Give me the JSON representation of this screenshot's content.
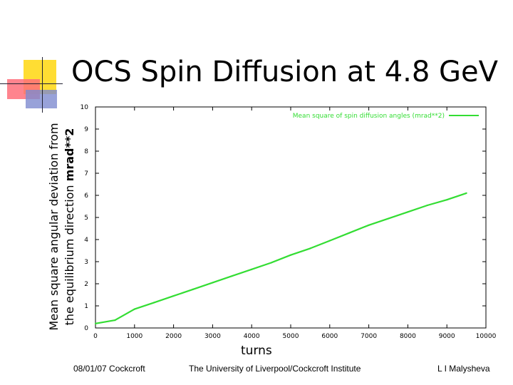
{
  "slide": {
    "title": "OCS Spin Diffusion at 4.8 GeV",
    "ylabel_line1": "Mean square angular deviation from",
    "ylabel_line2_text": "the equilibrium direction ",
    "ylabel_line2_unit": "mrad**2",
    "xlabel": "turns"
  },
  "footer": {
    "date": "08/01/07 Cockcroft",
    "institution": "The University of Liverpool/Cockcroft Institute",
    "author": "L I Malysheva"
  },
  "colors": {
    "series": "#33dd33",
    "legend_text": "#33dd33",
    "axis": "#000000",
    "deco_yellow": "#ffdd33",
    "deco_red": "#ff6f7a",
    "deco_blue": "#7e8bd0"
  },
  "chart_data": {
    "type": "line",
    "grid": false,
    "legend_placement": "top-right",
    "xlim": [
      0,
      10000
    ],
    "ylim": [
      0,
      10
    ],
    "x_ticks": [
      "0",
      "1000",
      "2000",
      "3000",
      "4000",
      "5000",
      "6000",
      "7000",
      "8000",
      "9000",
      "10000"
    ],
    "y_ticks": [
      "0",
      "1",
      "2",
      "3",
      "4",
      "5",
      "6",
      "7",
      "8",
      "9",
      "10"
    ],
    "series": [
      {
        "name": "Mean square of spin diffusion angles (mrad**2)",
        "x": [
          0,
          500,
          1000,
          1500,
          2000,
          2500,
          3000,
          3500,
          4000,
          4500,
          5000,
          5500,
          6000,
          6500,
          7000,
          7500,
          8000,
          8500,
          9000,
          9500
        ],
        "y": [
          0.2,
          0.35,
          0.85,
          1.15,
          1.45,
          1.75,
          2.05,
          2.35,
          2.65,
          2.95,
          3.3,
          3.6,
          3.95,
          4.3,
          4.65,
          4.95,
          5.25,
          5.55,
          5.8,
          6.1
        ]
      }
    ]
  }
}
